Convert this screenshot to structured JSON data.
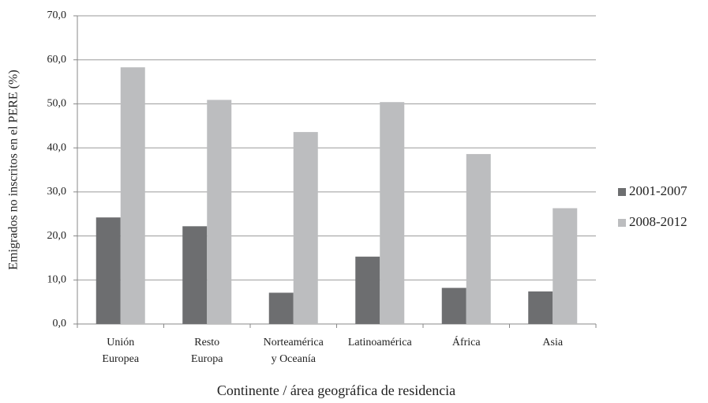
{
  "chart_data": {
    "type": "bar",
    "categories": [
      "Unión Europea",
      "Resto Europa",
      "Norteamérica y Oceanía",
      "Latinoamérica",
      "África",
      "Asia"
    ],
    "series": [
      {
        "name": "2001-2007",
        "color": "#6d6e70",
        "values": [
          24.2,
          22.2,
          7.1,
          15.3,
          8.2,
          7.4
        ]
      },
      {
        "name": "2008-2012",
        "color": "#bcbdbf",
        "values": [
          58.3,
          50.9,
          43.6,
          50.4,
          38.6,
          26.3
        ]
      }
    ],
    "ylabel": "Emigrados no inscritos en el PERE (%)",
    "xlabel": "Continente / área geográfica de residencia",
    "ylim": [
      0,
      70
    ],
    "yticks": [
      {
        "value": 0,
        "label": "0,0"
      },
      {
        "value": 10,
        "label": "10,0"
      },
      {
        "value": 20,
        "label": "20,0"
      },
      {
        "value": 30,
        "label": "30,0"
      },
      {
        "value": 40,
        "label": "40,0"
      },
      {
        "value": 50,
        "label": "50,0"
      },
      {
        "value": 60,
        "label": "60,0"
      },
      {
        "value": 70,
        "label": "70,0"
      }
    ],
    "grid": true,
    "legend": "right"
  }
}
